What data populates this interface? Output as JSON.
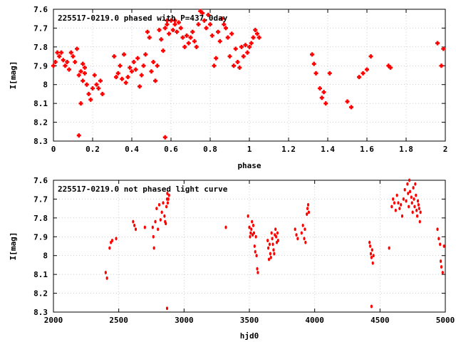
{
  "chart_data": [
    {
      "type": "scatter",
      "title": "225517-0219.0 phased with P=437.0day",
      "xlabel": "phase",
      "ylabel": "I[mag]",
      "xlim": [
        0,
        2
      ],
      "ylim": [
        8.3,
        7.6
      ],
      "y_inverted": true,
      "grid": true,
      "marker_color": "#ff0000",
      "marker": "filled-cross",
      "xticks": [
        "0",
        "0.2",
        "0.4",
        "0.6",
        "0.8",
        "1",
        "1.2",
        "1.4",
        "1.6",
        "1.8",
        "2"
      ],
      "yticks": [
        "7.6",
        "7.7",
        "7.8",
        "7.9",
        "8",
        "8.1",
        "8.2",
        "8.3"
      ],
      "points": [
        [
          0.0,
          7.9
        ],
        [
          0.01,
          7.88
        ],
        [
          0.02,
          7.83
        ],
        [
          0.03,
          7.85
        ],
        [
          0.04,
          7.83
        ],
        [
          0.05,
          7.87
        ],
        [
          0.06,
          7.9
        ],
        [
          0.07,
          7.88
        ],
        [
          0.08,
          7.92
        ],
        [
          0.09,
          7.83
        ],
        [
          0.1,
          7.85
        ],
        [
          0.11,
          7.88
        ],
        [
          0.12,
          7.81
        ],
        [
          0.13,
          7.95
        ],
        [
          0.14,
          7.93
        ],
        [
          0.15,
          7.98
        ],
        [
          0.16,
          7.91
        ],
        [
          0.17,
          8.0
        ],
        [
          0.18,
          8.05
        ],
        [
          0.19,
          8.08
        ],
        [
          0.2,
          8.02
        ],
        [
          0.21,
          7.95
        ],
        [
          0.22,
          8.0
        ],
        [
          0.23,
          8.02
        ],
        [
          0.24,
          7.98
        ],
        [
          0.25,
          8.05
        ],
        [
          0.14,
          8.1
        ],
        [
          0.13,
          8.27
        ],
        [
          0.15,
          7.89
        ],
        [
          0.16,
          7.94
        ],
        [
          0.31,
          7.85
        ],
        [
          0.32,
          7.96
        ],
        [
          0.33,
          7.94
        ],
        [
          0.34,
          7.9
        ],
        [
          0.35,
          7.97
        ],
        [
          0.36,
          7.84
        ],
        [
          0.37,
          7.99
        ],
        [
          0.38,
          7.96
        ],
        [
          0.39,
          7.91
        ],
        [
          0.4,
          7.93
        ],
        [
          0.41,
          7.88
        ],
        [
          0.42,
          7.92
        ],
        [
          0.43,
          7.86
        ],
        [
          0.44,
          8.01
        ],
        [
          0.45,
          7.95
        ],
        [
          0.46,
          7.9
        ],
        [
          0.47,
          7.84
        ],
        [
          0.48,
          7.72
        ],
        [
          0.49,
          7.75
        ],
        [
          0.5,
          7.93
        ],
        [
          0.51,
          7.88
        ],
        [
          0.52,
          7.98
        ],
        [
          0.53,
          7.9
        ],
        [
          0.54,
          7.71
        ],
        [
          0.55,
          7.76
        ],
        [
          0.56,
          7.82
        ],
        [
          0.57,
          7.7
        ],
        [
          0.58,
          7.68
        ],
        [
          0.59,
          7.73
        ],
        [
          0.6,
          7.66
        ],
        [
          0.61,
          7.71
        ],
        [
          0.62,
          7.68
        ],
        [
          0.63,
          7.72
        ],
        [
          0.64,
          7.67
        ],
        [
          0.65,
          7.7
        ],
        [
          0.66,
          7.75
        ],
        [
          0.67,
          7.8
        ],
        [
          0.68,
          7.74
        ],
        [
          0.69,
          7.78
        ],
        [
          0.7,
          7.75
        ],
        [
          0.71,
          7.72
        ],
        [
          0.72,
          7.77
        ],
        [
          0.73,
          7.8
        ],
        [
          0.74,
          7.68
        ],
        [
          0.75,
          7.61
        ],
        [
          0.76,
          7.62
        ],
        [
          0.77,
          7.66
        ],
        [
          0.78,
          7.7
        ],
        [
          0.79,
          7.63
        ],
        [
          0.8,
          7.68
        ],
        [
          0.81,
          7.74
        ],
        [
          0.82,
          7.9
        ],
        [
          0.83,
          7.86
        ],
        [
          0.84,
          7.72
        ],
        [
          0.85,
          7.77
        ],
        [
          0.86,
          7.65
        ],
        [
          0.87,
          7.68
        ],
        [
          0.88,
          7.7
        ],
        [
          0.89,
          7.75
        ],
        [
          0.9,
          7.85
        ],
        [
          0.91,
          7.73
        ],
        [
          0.92,
          7.9
        ],
        [
          0.93,
          7.81
        ],
        [
          0.94,
          7.88
        ],
        [
          0.95,
          7.91
        ],
        [
          0.96,
          7.8
        ],
        [
          0.97,
          7.85
        ],
        [
          0.98,
          7.79
        ],
        [
          0.99,
          7.83
        ],
        [
          1.0,
          7.8
        ],
        [
          1.01,
          7.78
        ],
        [
          1.02,
          7.75
        ],
        [
          1.03,
          7.71
        ],
        [
          1.04,
          7.73
        ],
        [
          1.05,
          7.75
        ],
        [
          0.57,
          8.28
        ],
        [
          0.58,
          7.66
        ],
        [
          0.62,
          7.66
        ],
        [
          1.32,
          7.84
        ],
        [
          1.33,
          7.89
        ],
        [
          1.34,
          7.94
        ],
        [
          1.36,
          8.02
        ],
        [
          1.37,
          8.07
        ],
        [
          1.38,
          8.04
        ],
        [
          1.39,
          8.1
        ],
        [
          1.41,
          7.94
        ],
        [
          1.5,
          8.09
        ],
        [
          1.52,
          8.12
        ],
        [
          1.56,
          7.96
        ],
        [
          1.58,
          7.94
        ],
        [
          1.6,
          7.92
        ],
        [
          1.62,
          7.85
        ],
        [
          1.71,
          7.9
        ],
        [
          1.72,
          7.91
        ],
        [
          1.96,
          7.78
        ],
        [
          1.98,
          7.9
        ],
        [
          1.99,
          7.81
        ]
      ]
    },
    {
      "type": "scatter",
      "title": "225517-0219.0 not phased light curve",
      "xlabel": "hjd0",
      "ylabel": "I[mag]",
      "xlim": [
        2000,
        5000
      ],
      "ylim": [
        8.3,
        7.6
      ],
      "y_inverted": true,
      "grid": true,
      "marker_color": "#ff0000",
      "marker": "small-dot",
      "xticks": [
        "2000",
        "2500",
        "3000",
        "3500",
        "4000",
        "4500",
        "5000"
      ],
      "yticks": [
        "7.6",
        "7.7",
        "7.8",
        "7.9",
        "8",
        "8.1",
        "8.2",
        "8.3"
      ],
      "points": [
        [
          2400,
          8.09
        ],
        [
          2410,
          8.12
        ],
        [
          2430,
          7.96
        ],
        [
          2440,
          7.93
        ],
        [
          2450,
          7.92
        ],
        [
          2480,
          7.91
        ],
        [
          2610,
          7.82
        ],
        [
          2620,
          7.84
        ],
        [
          2630,
          7.86
        ],
        [
          2700,
          7.85
        ],
        [
          2760,
          7.85
        ],
        [
          2765,
          7.9
        ],
        [
          2770,
          7.96
        ],
        [
          2780,
          7.82
        ],
        [
          2790,
          7.75
        ],
        [
          2800,
          7.86
        ],
        [
          2810,
          7.73
        ],
        [
          2820,
          7.81
        ],
        [
          2830,
          7.77
        ],
        [
          2840,
          7.72
        ],
        [
          2850,
          7.79
        ],
        [
          2855,
          7.82
        ],
        [
          2860,
          7.83
        ],
        [
          2865,
          7.74
        ],
        [
          2870,
          7.7
        ],
        [
          2872,
          7.67
        ],
        [
          2875,
          7.72
        ],
        [
          2880,
          7.7
        ],
        [
          2885,
          7.68
        ],
        [
          2870,
          8.28
        ],
        [
          3320,
          7.85
        ],
        [
          3490,
          7.79
        ],
        [
          3500,
          7.85
        ],
        [
          3505,
          7.9
        ],
        [
          3510,
          7.88
        ],
        [
          3515,
          7.86
        ],
        [
          3520,
          7.82
        ],
        [
          3525,
          7.89
        ],
        [
          3530,
          7.84
        ],
        [
          3535,
          7.88
        ],
        [
          3540,
          7.95
        ],
        [
          3545,
          7.98
        ],
        [
          3550,
          7.9
        ],
        [
          3555,
          8.0
        ],
        [
          3560,
          8.07
        ],
        [
          3565,
          8.09
        ],
        [
          3640,
          7.92
        ],
        [
          3645,
          7.96
        ],
        [
          3650,
          8.02
        ],
        [
          3655,
          7.94
        ],
        [
          3660,
          7.99
        ],
        [
          3665,
          8.01
        ],
        [
          3670,
          7.88
        ],
        [
          3675,
          7.91
        ],
        [
          3680,
          7.94
        ],
        [
          3685,
          7.97
        ],
        [
          3690,
          7.99
        ],
        [
          3695,
          7.89
        ],
        [
          3700,
          7.86
        ],
        [
          3705,
          7.9
        ],
        [
          3710,
          7.93
        ],
        [
          3715,
          7.88
        ],
        [
          3720,
          7.92
        ],
        [
          3850,
          7.86
        ],
        [
          3860,
          7.89
        ],
        [
          3870,
          7.91
        ],
        [
          3900,
          7.88
        ],
        [
          3910,
          7.84
        ],
        [
          3920,
          7.91
        ],
        [
          3925,
          7.86
        ],
        [
          3930,
          7.93
        ],
        [
          3940,
          7.78
        ],
        [
          3945,
          7.75
        ],
        [
          3950,
          7.73
        ],
        [
          3955,
          7.77
        ],
        [
          4420,
          7.93
        ],
        [
          4425,
          7.95
        ],
        [
          4430,
          7.99
        ],
        [
          4435,
          8.01
        ],
        [
          4440,
          7.97
        ],
        [
          4445,
          8.04
        ],
        [
          4450,
          8.0
        ],
        [
          4435,
          8.27
        ],
        [
          4570,
          7.96
        ],
        [
          4590,
          7.74
        ],
        [
          4600,
          7.7
        ],
        [
          4610,
          7.72
        ],
        [
          4620,
          7.76
        ],
        [
          4630,
          7.68
        ],
        [
          4640,
          7.72
        ],
        [
          4650,
          7.75
        ],
        [
          4660,
          7.73
        ],
        [
          4670,
          7.79
        ],
        [
          4680,
          7.7
        ],
        [
          4690,
          7.65
        ],
        [
          4700,
          7.71
        ],
        [
          4710,
          7.62
        ],
        [
          4715,
          7.67
        ],
        [
          4720,
          7.74
        ],
        [
          4725,
          7.6
        ],
        [
          4730,
          7.66
        ],
        [
          4740,
          7.69
        ],
        [
          4745,
          7.72
        ],
        [
          4750,
          7.77
        ],
        [
          4755,
          7.64
        ],
        [
          4760,
          7.7
        ],
        [
          4765,
          7.74
        ],
        [
          4770,
          7.62
        ],
        [
          4775,
          7.68
        ],
        [
          4780,
          7.76
        ],
        [
          4785,
          7.79
        ],
        [
          4790,
          7.71
        ],
        [
          4795,
          7.73
        ],
        [
          4800,
          7.75
        ],
        [
          4805,
          7.82
        ],
        [
          4810,
          7.77
        ],
        [
          4940,
          7.86
        ],
        [
          4950,
          7.91
        ],
        [
          4960,
          7.94
        ],
        [
          4965,
          8.03
        ],
        [
          4970,
          8.06
        ],
        [
          4980,
          8.09
        ],
        [
          4990,
          7.95
        ]
      ]
    }
  ]
}
